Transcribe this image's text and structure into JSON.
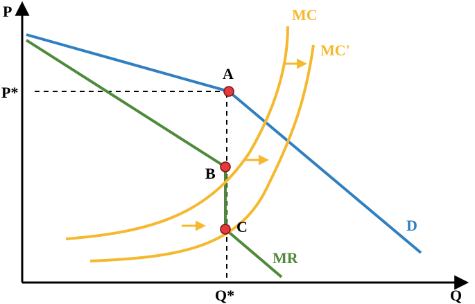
{
  "axes": {
    "y_label": "P",
    "x_label": "Q",
    "price_tick": "P*",
    "quantity_tick": "Q*"
  },
  "curves": {
    "demand": {
      "label": "D",
      "color": "#2f7fc1"
    },
    "marginal_revenue": {
      "label": "MR",
      "color": "#4f8a3a"
    },
    "marginal_cost": {
      "label": "MC",
      "color": "#f5b82e"
    },
    "marginal_cost_shifted": {
      "label": "MC'",
      "color": "#f5b82e"
    }
  },
  "points": {
    "a": {
      "label": "A"
    },
    "b": {
      "label": "B"
    },
    "c": {
      "label": "C"
    },
    "color": "#e33b3b"
  },
  "shift_arrows": {
    "color": "#f5b82e",
    "direction": "right"
  }
}
